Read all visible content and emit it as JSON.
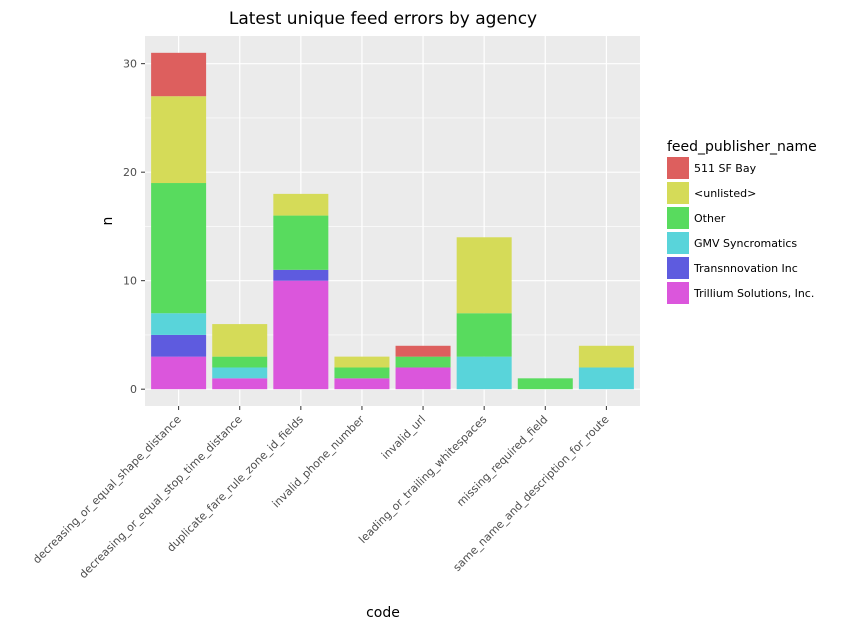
{
  "chart_data": {
    "type": "bar",
    "stacked": true,
    "title": "Latest unique feed errors by agency",
    "xlabel": "code",
    "ylabel": "n",
    "ylim": [
      -1.55,
      32.55
    ],
    "yticks": [
      0,
      10,
      20,
      30
    ],
    "grid": true,
    "legend_title": "feed_publisher_name",
    "legend_position": "right",
    "categories": [
      "decreasing_or_equal_shape_distance",
      "decreasing_or_equal_stop_time_distance",
      "duplicate_fare_rule_zone_id_fields",
      "invalid_phone_number",
      "invalid_url",
      "leading_or_trailing_whitespaces",
      "missing_required_field",
      "same_name_and_description_for_route"
    ],
    "series": [
      {
        "name": "Trillium Solutions, Inc.",
        "color": "#DB56DC",
        "values": [
          3,
          1,
          10,
          1,
          2,
          0,
          0,
          0
        ]
      },
      {
        "name": "Transnnovation Inc",
        "color": "#5E5BDF",
        "values": [
          2,
          0,
          1,
          0,
          0,
          0,
          0,
          0
        ]
      },
      {
        "name": "GMV Syncromatics",
        "color": "#59D4DA",
        "values": [
          2,
          1,
          0,
          0,
          0,
          3,
          0,
          2
        ]
      },
      {
        "name": "Other",
        "color": "#58DB5E",
        "values": [
          12,
          1,
          5,
          1,
          1,
          4,
          1,
          0
        ]
      },
      {
        "name": "<unlisted>",
        "color": "#D5DB58",
        "values": [
          8,
          3,
          2,
          1,
          0,
          7,
          0,
          2
        ]
      },
      {
        "name": "511 SF Bay",
        "color": "#DD5F5E",
        "values": [
          4,
          0,
          0,
          0,
          1,
          0,
          0,
          0
        ]
      }
    ],
    "legend_order": [
      "511 SF Bay",
      "<unlisted>",
      "Other",
      "GMV Syncromatics",
      "Transnnovation Inc",
      "Trillium Solutions, Inc."
    ]
  }
}
